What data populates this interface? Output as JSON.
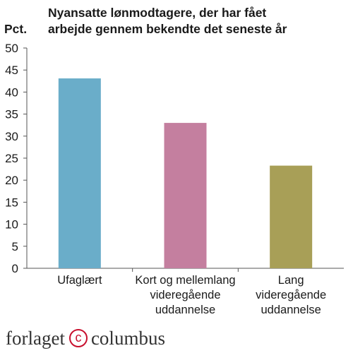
{
  "chart_data": {
    "type": "bar",
    "title_lines": [
      "Nyansatte lønmodtagere, der har fået",
      "arbejde gennem bekendte det seneste år"
    ],
    "ylabel": "Pct.",
    "xlabel": "",
    "ylim": [
      0,
      50
    ],
    "yticks": [
      0,
      5,
      10,
      15,
      20,
      25,
      30,
      35,
      40,
      45,
      50
    ],
    "grid": false,
    "categories": [
      [
        "Ufaglært"
      ],
      [
        "Kort og mellemlang",
        "videregående",
        "uddannelse"
      ],
      [
        "Lang",
        "videregående",
        "uddannelse"
      ]
    ],
    "values": [
      43.1,
      33.0,
      23.3
    ],
    "colors": [
      "#6aadc9",
      "#c47f9f",
      "#a89f57"
    ]
  },
  "logo": {
    "left": "forlaget",
    "mark": "c",
    "right": "columbus"
  }
}
